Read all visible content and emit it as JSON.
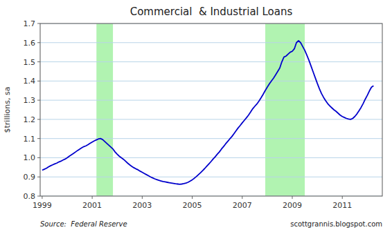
{
  "chart_data": {
    "type": "line",
    "title": "Commercial  & Industrial Loans",
    "ylabel": "$trillions, sa",
    "annotations": [
      "Source:  Federal Reserve",
      "scottgrannis.blogspot.com"
    ],
    "color": "#0000cc",
    "grid": true,
    "xlim": [
      1998.92,
      2012.6
    ],
    "xticks": [
      1999,
      2001,
      2003,
      2005,
      2007,
      2009,
      2011
    ],
    "ylim": [
      0.8,
      1.7
    ],
    "yticks": [
      0.8,
      0.9,
      {
        "value": 1.0,
        "label": "1.0"
      },
      1.1,
      1.2,
      1.3,
      1.4,
      1.5,
      1.6,
      1.7
    ],
    "recessions": {
      "color": "#90EE90",
      "ranges": [
        [
          2001.17,
          2001.83
        ],
        [
          2007.92,
          2009.5
        ]
      ]
    },
    "x": [
      1999.0,
      1999.083,
      1999.167,
      1999.25,
      1999.333,
      1999.417,
      1999.5,
      1999.583,
      1999.667,
      1999.75,
      1999.833,
      1999.917,
      2000.0,
      2000.083,
      2000.167,
      2000.25,
      2000.333,
      2000.417,
      2000.5,
      2000.583,
      2000.667,
      2000.75,
      2000.833,
      2000.917,
      2001.0,
      2001.083,
      2001.167,
      2001.25,
      2001.333,
      2001.417,
      2001.5,
      2001.583,
      2001.667,
      2001.75,
      2001.833,
      2001.917,
      2002.0,
      2002.083,
      2002.167,
      2002.25,
      2002.333,
      2002.417,
      2002.5,
      2002.583,
      2002.667,
      2002.75,
      2002.833,
      2002.917,
      2003.0,
      2003.083,
      2003.167,
      2003.25,
      2003.333,
      2003.417,
      2003.5,
      2003.583,
      2003.667,
      2003.75,
      2003.833,
      2003.917,
      2004.0,
      2004.083,
      2004.167,
      2004.25,
      2004.333,
      2004.417,
      2004.5,
      2004.583,
      2004.667,
      2004.75,
      2004.833,
      2004.917,
      2005.0,
      2005.083,
      2005.167,
      2005.25,
      2005.333,
      2005.417,
      2005.5,
      2005.583,
      2005.667,
      2005.75,
      2005.833,
      2005.917,
      2006.0,
      2006.083,
      2006.167,
      2006.25,
      2006.333,
      2006.417,
      2006.5,
      2006.583,
      2006.667,
      2006.75,
      2006.833,
      2006.917,
      2007.0,
      2007.083,
      2007.167,
      2007.25,
      2007.333,
      2007.417,
      2007.5,
      2007.583,
      2007.667,
      2007.75,
      2007.833,
      2007.917,
      2008.0,
      2008.083,
      2008.167,
      2008.25,
      2008.333,
      2008.417,
      2008.5,
      2008.583,
      2008.667,
      2008.75,
      2008.833,
      2008.917,
      2009.0,
      2009.083,
      2009.167,
      2009.25,
      2009.333,
      2009.417,
      2009.5,
      2009.583,
      2009.667,
      2009.75,
      2009.833,
      2009.917,
      2010.0,
      2010.083,
      2010.167,
      2010.25,
      2010.333,
      2010.417,
      2010.5,
      2010.583,
      2010.667,
      2010.75,
      2010.833,
      2010.917,
      2011.0,
      2011.083,
      2011.167,
      2011.25,
      2011.333,
      2011.417,
      2011.5,
      2011.583,
      2011.667,
      2011.75,
      2011.833,
      2011.917,
      2012.0,
      2012.083,
      2012.167,
      2012.25
    ],
    "values": [
      0.935,
      0.94,
      0.945,
      0.952,
      0.958,
      0.963,
      0.968,
      0.972,
      0.978,
      0.982,
      0.988,
      0.993,
      1.0,
      1.008,
      1.015,
      1.022,
      1.03,
      1.038,
      1.045,
      1.052,
      1.058,
      1.062,
      1.068,
      1.075,
      1.082,
      1.088,
      1.093,
      1.098,
      1.1,
      1.095,
      1.085,
      1.075,
      1.065,
      1.055,
      1.045,
      1.03,
      1.018,
      1.008,
      1.0,
      0.992,
      0.982,
      0.972,
      0.963,
      0.955,
      0.948,
      0.942,
      0.937,
      0.93,
      0.924,
      0.918,
      0.912,
      0.906,
      0.9,
      0.895,
      0.89,
      0.886,
      0.882,
      0.879,
      0.876,
      0.874,
      0.872,
      0.87,
      0.868,
      0.866,
      0.864,
      0.863,
      0.862,
      0.863,
      0.865,
      0.868,
      0.872,
      0.878,
      0.885,
      0.893,
      0.902,
      0.912,
      0.922,
      0.933,
      0.944,
      0.956,
      0.968,
      0.98,
      0.993,
      1.005,
      1.018,
      1.03,
      1.045,
      1.058,
      1.072,
      1.085,
      1.098,
      1.11,
      1.125,
      1.14,
      1.155,
      1.168,
      1.182,
      1.195,
      1.208,
      1.222,
      1.238,
      1.255,
      1.268,
      1.28,
      1.295,
      1.312,
      1.33,
      1.35,
      1.368,
      1.385,
      1.4,
      1.415,
      1.432,
      1.45,
      1.468,
      1.5,
      1.525,
      1.53,
      1.54,
      1.55,
      1.555,
      1.568,
      1.6,
      1.61,
      1.6,
      1.58,
      1.56,
      1.535,
      1.508,
      1.478,
      1.448,
      1.418,
      1.388,
      1.36,
      1.335,
      1.315,
      1.298,
      1.282,
      1.27,
      1.26,
      1.25,
      1.242,
      1.232,
      1.222,
      1.215,
      1.21,
      1.205,
      1.202,
      1.2,
      1.205,
      1.215,
      1.228,
      1.245,
      1.262,
      1.282,
      1.305,
      1.325,
      1.348,
      1.368,
      1.375
    ]
  }
}
